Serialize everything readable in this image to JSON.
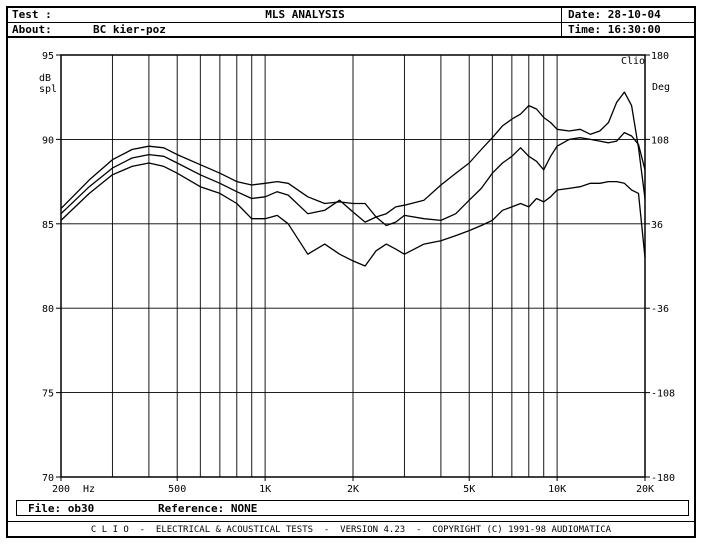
{
  "header": {
    "test_label": "Test :",
    "title": "MLS ANALYSIS",
    "date_label": "Date: 28-10-04",
    "about_label": "About:",
    "about_value": "BC kier-poz",
    "time_label": "Time: 16:30:00"
  },
  "chart_data": {
    "type": "line",
    "title": "MLS ANALYSIS",
    "xscale": "log",
    "xlim": [
      200,
      20000
    ],
    "ylim": [
      70,
      95
    ],
    "y2lim": [
      -180,
      180
    ],
    "grid": true,
    "xlabel_unit": "Hz",
    "ylabel": "dB\nspl",
    "y2label": "Deg",
    "brand_label": "Clio",
    "x_ticks": [
      {
        "value": 200,
        "label": "200"
      },
      {
        "value": 500,
        "label": "500"
      },
      {
        "value": 1000,
        "label": "1K"
      },
      {
        "value": 2000,
        "label": "2K"
      },
      {
        "value": 5000,
        "label": "5K"
      },
      {
        "value": 10000,
        "label": "10K"
      },
      {
        "value": 20000,
        "label": "20K"
      }
    ],
    "y_ticks": [
      95,
      90,
      85,
      80,
      75,
      70
    ],
    "y2_ticks": [
      "180",
      "108",
      "36",
      "-36",
      "-108",
      "-180"
    ],
    "x_grid": [
      200,
      300,
      400,
      500,
      600,
      700,
      800,
      900,
      1000,
      2000,
      3000,
      4000,
      5000,
      6000,
      7000,
      8000,
      9000,
      10000,
      20000
    ],
    "series": [
      {
        "x": [
          200,
          250,
          300,
          350,
          400,
          450,
          500,
          600,
          700,
          800,
          900,
          1000,
          1100,
          1200,
          1400,
          1600,
          1800,
          2000,
          2200,
          2400,
          2600,
          2800,
          3000,
          3500,
          4000,
          4500,
          5000,
          5500,
          6000,
          6500,
          7000,
          7500,
          8000,
          8500,
          9000,
          9500,
          10000,
          11000,
          12000,
          13000,
          14000,
          15000,
          16000,
          17000,
          18000,
          19000,
          20000
        ],
        "y": [
          85.9,
          87.6,
          88.8,
          89.4,
          89.6,
          89.5,
          89.1,
          88.5,
          88.0,
          87.5,
          87.3,
          87.4,
          87.5,
          87.4,
          86.6,
          86.2,
          86.3,
          86.2,
          86.2,
          85.4,
          85.6,
          86.0,
          86.1,
          86.4,
          87.3,
          88.0,
          88.6,
          89.4,
          90.1,
          90.8,
          91.2,
          91.5,
          92.0,
          91.8,
          91.3,
          91.0,
          90.6,
          90.5,
          90.6,
          90.3,
          90.5,
          91.0,
          92.2,
          92.8,
          92.0,
          89.5,
          86.5
        ]
      },
      {
        "x": [
          200,
          250,
          300,
          350,
          400,
          450,
          500,
          600,
          700,
          800,
          900,
          1000,
          1100,
          1200,
          1400,
          1600,
          1800,
          2000,
          2200,
          2400,
          2600,
          2800,
          3000,
          3500,
          4000,
          4500,
          5000,
          5500,
          6000,
          6500,
          7000,
          7500,
          8000,
          8500,
          9000,
          9500,
          10000,
          11000,
          12000,
          13000,
          14000,
          15000,
          16000,
          17000,
          18000,
          19000,
          20000
        ],
        "y": [
          85.6,
          87.2,
          88.3,
          88.9,
          89.1,
          89.0,
          88.6,
          87.9,
          87.4,
          86.9,
          86.5,
          86.6,
          86.9,
          86.7,
          85.6,
          85.8,
          86.4,
          85.7,
          85.1,
          85.4,
          84.9,
          85.1,
          85.5,
          85.3,
          85.2,
          85.6,
          86.4,
          87.1,
          88.0,
          88.6,
          89.0,
          89.5,
          89.0,
          88.7,
          88.2,
          89.0,
          89.6,
          90.0,
          90.1,
          90.0,
          89.9,
          89.8,
          89.9,
          90.4,
          90.2,
          89.7,
          88.2
        ]
      },
      {
        "x": [
          200,
          250,
          300,
          350,
          400,
          450,
          500,
          600,
          700,
          800,
          900,
          1000,
          1100,
          1200,
          1400,
          1600,
          1800,
          2000,
          2200,
          2400,
          2600,
          2800,
          3000,
          3500,
          4000,
          4500,
          5000,
          5500,
          6000,
          6500,
          7000,
          7500,
          8000,
          8500,
          9000,
          9500,
          10000,
          11000,
          12000,
          13000,
          14000,
          15000,
          16000,
          17000,
          18000,
          19000,
          20000
        ],
        "y": [
          85.2,
          86.8,
          87.9,
          88.4,
          88.6,
          88.4,
          88.0,
          87.2,
          86.8,
          86.2,
          85.3,
          85.3,
          85.5,
          85.0,
          83.2,
          83.8,
          83.2,
          82.8,
          82.5,
          83.4,
          83.8,
          83.5,
          83.2,
          83.8,
          84.0,
          84.3,
          84.6,
          84.9,
          85.2,
          85.8,
          86.0,
          86.2,
          86.0,
          86.5,
          86.3,
          86.6,
          87.0,
          87.1,
          87.2,
          87.4,
          87.4,
          87.5,
          87.5,
          87.4,
          87.0,
          86.8,
          83.0
        ]
      }
    ]
  },
  "footer": {
    "file_label": "File: ob30",
    "reference_label": "Reference: NONE",
    "banner": "C L I O  -  ELECTRICAL & ACOUSTICAL TESTS  -  VERSION 4.23  -  COPYRIGHT (C) 1991-98 AUDIOMATICA"
  }
}
